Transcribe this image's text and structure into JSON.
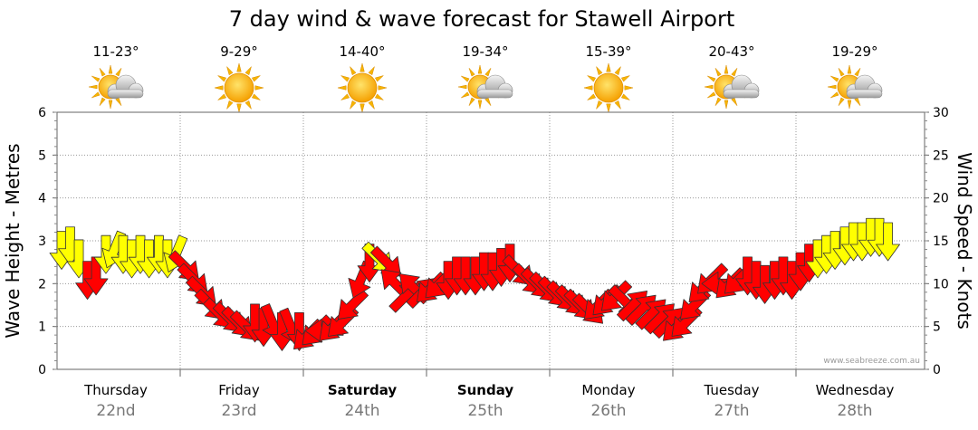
{
  "chart_data": {
    "type": "line",
    "title": "7 day wind & wave forecast for Stawell Airport",
    "ylabel_left": "Wave Height - Metres",
    "ylabel_right": "Wind Speed - Knots",
    "ylim_left": [
      0,
      6
    ],
    "ylim_right": [
      0,
      30
    ],
    "yticks_left": [
      "0",
      "1",
      "2",
      "3",
      "4",
      "5",
      "6"
    ],
    "yticks_right": [
      "0",
      "5",
      "10",
      "15",
      "20",
      "25",
      "30"
    ],
    "credit": "www.seabreeze.com.au",
    "days": [
      {
        "name": "Thursday",
        "date": "22nd",
        "temp": "11-23°",
        "weather": "partly-cloudy",
        "bold": false
      },
      {
        "name": "Friday",
        "date": "23rd",
        "temp": "9-29°",
        "weather": "sunny",
        "bold": false
      },
      {
        "name": "Saturday",
        "date": "24th",
        "temp": "14-40°",
        "weather": "sunny",
        "bold": true
      },
      {
        "name": "Sunday",
        "date": "25th",
        "temp": "19-34°",
        "weather": "partly-cloudy",
        "bold": true
      },
      {
        "name": "Monday",
        "date": "26th",
        "temp": "15-39°",
        "weather": "sunny",
        "bold": false
      },
      {
        "name": "Tuesday",
        "date": "27th",
        "temp": "20-43°",
        "weather": "partly-cloudy",
        "bold": false
      },
      {
        "name": "Wednesday",
        "date": "28th",
        "temp": "19-29°",
        "weather": "partly-cloudy",
        "bold": false
      }
    ],
    "colors": {
      "light_wind": "#ffff00",
      "strong_wind": "#ff0000",
      "outline": "#333333",
      "grid": "#999999"
    },
    "wind_series": {
      "name": "Wind Speed",
      "unit": "knots",
      "color_threshold_knots": 12.5,
      "points": [
        {
          "day": 0.0,
          "speed": 14.0,
          "dir": "N"
        },
        {
          "day": 0.07,
          "speed": 14.5,
          "dir": "N"
        },
        {
          "day": 0.14,
          "speed": 13.0,
          "dir": "N"
        },
        {
          "day": 0.21,
          "speed": 10.5,
          "dir": "N"
        },
        {
          "day": 0.28,
          "speed": 11.0,
          "dir": "N"
        },
        {
          "day": 0.36,
          "speed": 13.5,
          "dir": "N"
        },
        {
          "day": 0.43,
          "speed": 14.0,
          "dir": "NNE"
        },
        {
          "day": 0.5,
          "speed": 13.5,
          "dir": "N"
        },
        {
          "day": 0.57,
          "speed": 13.0,
          "dir": "N"
        },
        {
          "day": 0.64,
          "speed": 13.5,
          "dir": "N"
        },
        {
          "day": 0.71,
          "speed": 13.0,
          "dir": "N"
        },
        {
          "day": 0.79,
          "speed": 13.5,
          "dir": "N"
        },
        {
          "day": 0.86,
          "speed": 13.0,
          "dir": "N"
        },
        {
          "day": 0.93,
          "speed": 13.5,
          "dir": "NNE"
        },
        {
          "day": 1.0,
          "speed": 12.0,
          "dir": "NW"
        },
        {
          "day": 1.07,
          "speed": 10.5,
          "dir": "NW"
        },
        {
          "day": 1.14,
          "speed": 9.0,
          "dir": "NW"
        },
        {
          "day": 1.21,
          "speed": 7.5,
          "dir": "NW"
        },
        {
          "day": 1.28,
          "speed": 6.5,
          "dir": "NW"
        },
        {
          "day": 1.36,
          "speed": 6.0,
          "dir": "NW"
        },
        {
          "day": 1.43,
          "speed": 5.5,
          "dir": "NW"
        },
        {
          "day": 1.5,
          "speed": 5.0,
          "dir": "NW"
        },
        {
          "day": 1.57,
          "speed": 5.5,
          "dir": "N"
        },
        {
          "day": 1.64,
          "speed": 5.0,
          "dir": "N"
        },
        {
          "day": 1.71,
          "speed": 5.5,
          "dir": "NNW"
        },
        {
          "day": 1.79,
          "speed": 4.5,
          "dir": "N"
        },
        {
          "day": 1.86,
          "speed": 5.0,
          "dir": "NNW"
        },
        {
          "day": 1.93,
          "speed": 4.5,
          "dir": "N"
        },
        {
          "day": 2.0,
          "speed": 4.0,
          "dir": "NE"
        },
        {
          "day": 2.07,
          "speed": 4.5,
          "dir": "NE"
        },
        {
          "day": 2.14,
          "speed": 4.5,
          "dir": "E"
        },
        {
          "day": 2.21,
          "speed": 5.0,
          "dir": "NE"
        },
        {
          "day": 2.28,
          "speed": 5.5,
          "dir": "NE"
        },
        {
          "day": 2.36,
          "speed": 7.5,
          "dir": "NE"
        },
        {
          "day": 2.43,
          "speed": 10.5,
          "dir": "NNE"
        },
        {
          "day": 2.5,
          "speed": 12.5,
          "dir": "N"
        },
        {
          "day": 2.57,
          "speed": 13.0,
          "dir": "NW"
        },
        {
          "day": 2.64,
          "speed": 12.5,
          "dir": "NW"
        },
        {
          "day": 2.71,
          "speed": 10.0,
          "dir": "SE"
        },
        {
          "day": 2.79,
          "speed": 8.5,
          "dir": "SW"
        },
        {
          "day": 2.86,
          "speed": 9.5,
          "dir": "SE"
        },
        {
          "day": 2.93,
          "speed": 9.0,
          "dir": "SW"
        },
        {
          "day": 3.0,
          "speed": 9.5,
          "dir": "NE"
        },
        {
          "day": 3.07,
          "speed": 10.0,
          "dir": "NE"
        },
        {
          "day": 3.14,
          "speed": 10.5,
          "dir": "N"
        },
        {
          "day": 3.21,
          "speed": 11.0,
          "dir": "N"
        },
        {
          "day": 3.28,
          "speed": 11.0,
          "dir": "N"
        },
        {
          "day": 3.36,
          "speed": 11.0,
          "dir": "N"
        },
        {
          "day": 3.43,
          "speed": 11.5,
          "dir": "N"
        },
        {
          "day": 3.5,
          "speed": 11.5,
          "dir": "N"
        },
        {
          "day": 3.57,
          "speed": 12.0,
          "dir": "N"
        },
        {
          "day": 3.64,
          "speed": 12.5,
          "dir": "N"
        },
        {
          "day": 3.71,
          "speed": 11.5,
          "dir": "NW"
        },
        {
          "day": 3.79,
          "speed": 10.5,
          "dir": "NW"
        },
        {
          "day": 3.86,
          "speed": 10.0,
          "dir": "NW"
        },
        {
          "day": 3.93,
          "speed": 9.5,
          "dir": "NW"
        },
        {
          "day": 4.0,
          "speed": 9.0,
          "dir": "NW"
        },
        {
          "day": 4.07,
          "speed": 8.5,
          "dir": "NW"
        },
        {
          "day": 4.14,
          "speed": 8.0,
          "dir": "NW"
        },
        {
          "day": 4.21,
          "speed": 7.5,
          "dir": "NW"
        },
        {
          "day": 4.28,
          "speed": 7.0,
          "dir": "NW"
        },
        {
          "day": 4.36,
          "speed": 7.5,
          "dir": "NE"
        },
        {
          "day": 4.43,
          "speed": 8.0,
          "dir": "NE"
        },
        {
          "day": 4.5,
          "speed": 8.5,
          "dir": "NE"
        },
        {
          "day": 4.57,
          "speed": 8.0,
          "dir": "NW"
        },
        {
          "day": 4.64,
          "speed": 7.5,
          "dir": "SW"
        },
        {
          "day": 4.71,
          "speed": 7.0,
          "dir": "SW"
        },
        {
          "day": 4.79,
          "speed": 6.5,
          "dir": "SW"
        },
        {
          "day": 4.86,
          "speed": 6.0,
          "dir": "SW"
        },
        {
          "day": 4.93,
          "speed": 5.5,
          "dir": "SW"
        },
        {
          "day": 5.0,
          "speed": 5.0,
          "dir": "NE"
        },
        {
          "day": 5.07,
          "speed": 5.5,
          "dir": "NE"
        },
        {
          "day": 5.14,
          "speed": 7.5,
          "dir": "NE"
        },
        {
          "day": 5.21,
          "speed": 9.5,
          "dir": "NE"
        },
        {
          "day": 5.28,
          "speed": 10.5,
          "dir": "NE"
        },
        {
          "day": 5.36,
          "speed": 10.0,
          "dir": "E"
        },
        {
          "day": 5.43,
          "speed": 10.0,
          "dir": "NE"
        },
        {
          "day": 5.5,
          "speed": 10.5,
          "dir": "NE"
        },
        {
          "day": 5.57,
          "speed": 11.0,
          "dir": "N"
        },
        {
          "day": 5.64,
          "speed": 10.5,
          "dir": "N"
        },
        {
          "day": 5.71,
          "speed": 10.0,
          "dir": "N"
        },
        {
          "day": 5.79,
          "speed": 10.5,
          "dir": "N"
        },
        {
          "day": 5.86,
          "speed": 11.0,
          "dir": "N"
        },
        {
          "day": 5.93,
          "speed": 10.5,
          "dir": "N"
        },
        {
          "day": 6.0,
          "speed": 11.5,
          "dir": "N"
        },
        {
          "day": 6.07,
          "speed": 12.5,
          "dir": "N"
        },
        {
          "day": 6.14,
          "speed": 13.0,
          "dir": "N"
        },
        {
          "day": 6.21,
          "speed": 13.5,
          "dir": "N"
        },
        {
          "day": 6.28,
          "speed": 14.0,
          "dir": "N"
        },
        {
          "day": 6.36,
          "speed": 14.5,
          "dir": "N"
        },
        {
          "day": 6.43,
          "speed": 15.0,
          "dir": "N"
        },
        {
          "day": 6.5,
          "speed": 15.0,
          "dir": "N"
        },
        {
          "day": 6.57,
          "speed": 15.5,
          "dir": "N"
        },
        {
          "day": 6.64,
          "speed": 15.5,
          "dir": "N"
        },
        {
          "day": 6.71,
          "speed": 15.0,
          "dir": "N"
        }
      ]
    }
  }
}
